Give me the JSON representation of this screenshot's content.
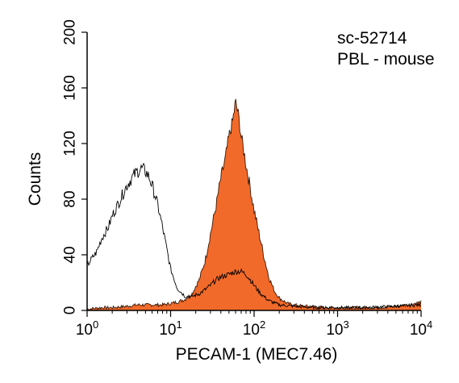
{
  "chart_data": {
    "type": "area",
    "xlabel": "PECAM-1 (MEC7.46)",
    "ylabel": "Counts",
    "xscale": "log",
    "xlim": [
      1,
      10000
    ],
    "ylim": [
      0,
      200
    ],
    "x_ticks": [
      {
        "value": 1,
        "base": "10",
        "exp": "0"
      },
      {
        "value": 10,
        "base": "10",
        "exp": "1"
      },
      {
        "value": 100,
        "base": "10",
        "exp": "2"
      },
      {
        "value": 1000,
        "base": "10",
        "exp": "3"
      },
      {
        "value": 10000,
        "base": "10",
        "exp": "4"
      }
    ],
    "y_ticks": [
      "0",
      "40",
      "80",
      "120",
      "160",
      "200"
    ],
    "annotations": [
      "sc-52714",
      "PBL - mouse"
    ],
    "colors": {
      "filled": "#f26a2a",
      "line": "#000000"
    },
    "series": [
      {
        "style": "filled",
        "x": [
          1,
          1.5,
          2,
          3,
          4,
          5,
          6,
          8,
          10,
          12,
          15,
          18,
          22,
          26,
          30,
          35,
          40,
          45,
          50,
          55,
          60,
          65,
          70,
          75,
          80,
          90,
          100,
          115,
          130,
          150,
          175,
          200,
          250,
          300,
          400,
          500,
          700,
          1000,
          1500,
          2000,
          3000,
          5000,
          7000,
          10000
        ],
        "values": [
          1,
          2,
          2,
          3,
          4,
          4,
          4,
          4,
          5,
          6,
          8,
          12,
          22,
          36,
          55,
          75,
          95,
          108,
          125,
          135,
          150,
          140,
          125,
          115,
          105,
          88,
          72,
          55,
          40,
          24,
          14,
          9,
          5,
          4,
          3,
          3,
          2,
          2,
          2,
          2,
          2,
          3,
          4,
          6
        ]
      },
      {
        "style": "outline",
        "x": [
          1,
          1.1,
          1.3,
          1.5,
          1.8,
          2,
          2.5,
          3,
          3.5,
          4,
          4.5,
          5,
          5.5,
          6,
          7,
          8,
          9,
          10,
          12,
          15,
          18,
          22,
          26,
          30,
          35,
          40,
          45,
          50,
          60,
          70,
          80,
          90,
          100,
          120,
          150,
          200,
          300,
          500,
          1000,
          2000,
          5000,
          10000
        ],
        "values": [
          32,
          36,
          42,
          52,
          60,
          68,
          80,
          90,
          96,
          100,
          102,
          100,
          96,
          90,
          76,
          60,
          44,
          30,
          16,
          10,
          10,
          12,
          15,
          18,
          22,
          24,
          25,
          26,
          28,
          28,
          26,
          22,
          18,
          12,
          7,
          4,
          3,
          2,
          2,
          2,
          3,
          4
        ]
      }
    ]
  }
}
